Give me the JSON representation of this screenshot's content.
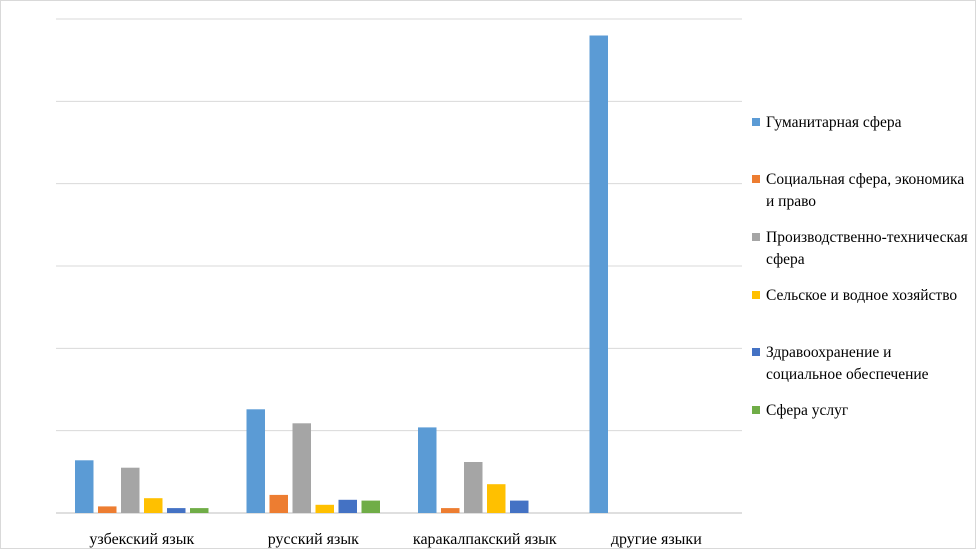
{
  "chart_data": {
    "type": "bar",
    "categories": [
      "узбекский язык",
      "русский язык",
      "каракалпакский язык",
      "другие языки"
    ],
    "series": [
      {
        "name": "Гуманитарная сфера",
        "color": "#5b9bd5",
        "values": [
          6.4,
          12.6,
          10.4,
          58.0
        ]
      },
      {
        "name": "Социальная сфера, экономика и право",
        "color": "#ed7d31",
        "values": [
          0.8,
          2.2,
          0.6,
          0
        ]
      },
      {
        "name": "Производственно-техническая сфера",
        "color": "#a5a5a5",
        "values": [
          5.5,
          10.9,
          6.2,
          0
        ]
      },
      {
        "name": "Сельское и водное хозяйство",
        "color": "#ffc000",
        "values": [
          1.8,
          1.0,
          3.5,
          0
        ]
      },
      {
        "name": "Здравоохранение и социальное обеспечение",
        "color": "#4472c4",
        "values": [
          0.6,
          1.6,
          1.5,
          0
        ]
      },
      {
        "name": "Сфера услуг",
        "color": "#70ad47",
        "values": [
          0.6,
          1.5,
          0,
          0
        ]
      }
    ],
    "ylim": [
      0,
      60
    ],
    "gridlines": [
      0,
      10,
      20,
      30,
      40,
      50,
      60
    ],
    "y_tick_labels_shown": false,
    "grid": true,
    "legend_position": "right"
  }
}
